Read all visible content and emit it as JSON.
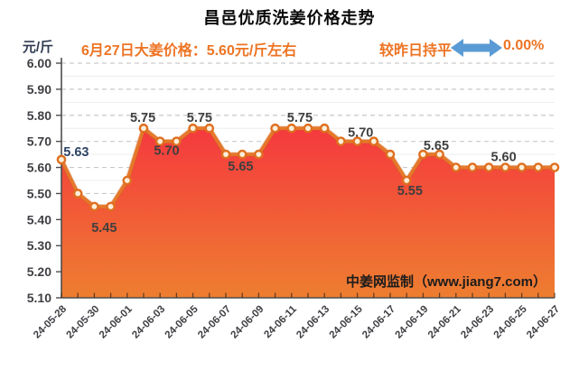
{
  "header": {
    "title": "昌邑优质洗姜价格走势",
    "unit_label": "元/斤",
    "subtitle": "6月27日大姜价格：5.60元/斤左右",
    "comparison_label": "较昨日持平",
    "comparison_value": "0.00%",
    "accent_color": "#ED7424",
    "arrow_icon": "left-right-arrow",
    "arrow_color": "#5B9BD5"
  },
  "watermark": "中姜网监制（www.jiang7.com）",
  "chart_data": {
    "type": "area",
    "title": "昌邑优质洗姜价格走势",
    "xlabel": "",
    "ylabel": "元/斤",
    "ylim": [
      5.1,
      6.0
    ],
    "y_tick_step": 0.1,
    "grid": "major-dashed-horizontal, minor-solid-horizontal",
    "legend_position": "none",
    "x_label_every": 2,
    "x": [
      "24-05-28",
      "24-05-29",
      "24-05-30",
      "24-05-31",
      "24-06-01",
      "24-06-02",
      "24-06-03",
      "24-06-04",
      "24-06-05",
      "24-06-06",
      "24-06-07",
      "24-06-08",
      "24-06-09",
      "24-06-10",
      "24-06-11",
      "24-06-12",
      "24-06-13",
      "24-06-14",
      "24-06-15",
      "24-06-16",
      "24-06-17",
      "24-06-18",
      "24-06-19",
      "24-06-20",
      "24-06-21",
      "24-06-22",
      "24-06-23",
      "24-06-24",
      "24-06-25",
      "24-06-26",
      "24-06-27"
    ],
    "values": [
      5.63,
      5.5,
      5.45,
      5.45,
      5.55,
      5.75,
      5.7,
      5.7,
      5.75,
      5.75,
      5.65,
      5.65,
      5.65,
      5.75,
      5.75,
      5.75,
      5.75,
      5.7,
      5.7,
      5.7,
      5.65,
      5.55,
      5.65,
      5.65,
      5.6,
      5.6,
      5.6,
      5.6,
      5.6,
      5.6,
      5.6
    ],
    "point_labels": [
      {
        "at": 0.9,
        "text": "5.63",
        "dy": -4
      },
      {
        "at": 2.6,
        "text": "5.45",
        "dy": 28
      },
      {
        "at": 4.95,
        "text": "5.75",
        "dy": -7
      },
      {
        "at": 6.4,
        "text": "5.70",
        "dy": 15
      },
      {
        "at": 8.4,
        "text": "5.75",
        "dy": -7
      },
      {
        "at": 10.9,
        "text": "5.65",
        "dy": 18
      },
      {
        "at": 14.5,
        "text": "5.75",
        "dy": -7
      },
      {
        "at": 18.2,
        "text": "5.70",
        "dy": -5
      },
      {
        "at": 21.2,
        "text": "5.55",
        "dy": 16
      },
      {
        "at": 22.8,
        "text": "5.65",
        "dy": -5
      },
      {
        "at": 26.9,
        "text": "5.60",
        "dy": -7
      }
    ],
    "colors": {
      "line": "#E5782A",
      "marker_fill": "#FCEFDA",
      "marker_stroke": "#DF6F1F",
      "area_top": "#F5393E",
      "area_bottom": "#EE7E30",
      "grid_major": "#C9C9C9",
      "grid_minor": "#EDEDED",
      "axis": "#4D4D4D",
      "tick_label": "#3F3F44",
      "first_point_label": "#2E4466",
      "point_label": "#3F3F3F",
      "watermark": "#1C1C1C"
    }
  }
}
